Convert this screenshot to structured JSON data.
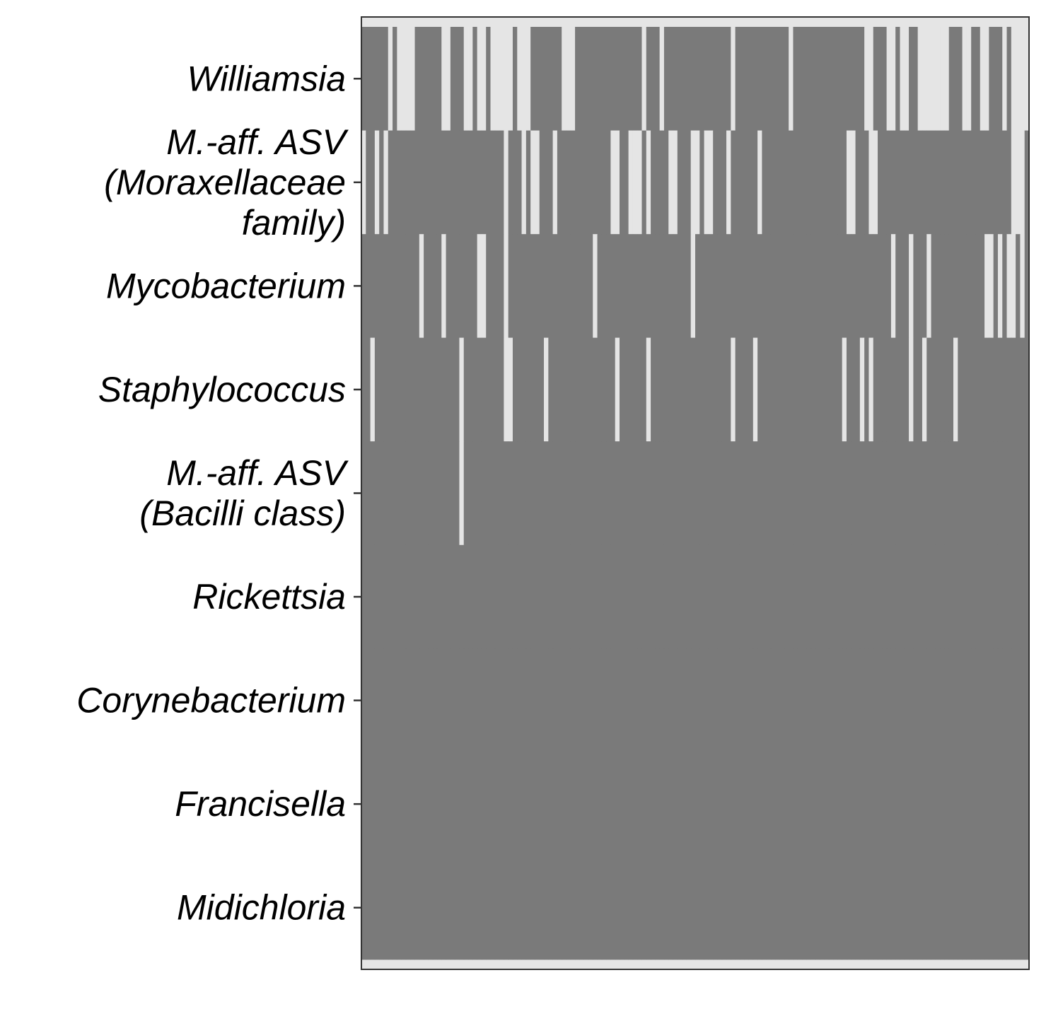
{
  "chart_data": {
    "type": "heatmap",
    "title": "",
    "xlabel": "",
    "ylabel": "",
    "n_columns": 150,
    "colors": {
      "present": "#7a7a7a",
      "absent": "#e5e5e5",
      "frame": "#333333",
      "background": "#ffffff"
    },
    "rows": [
      {
        "label": [
          "Williamsia"
        ],
        "absent_columns": [
          6,
          8,
          9,
          10,
          11,
          18,
          19,
          23,
          24,
          26,
          27,
          29,
          30,
          31,
          32,
          33,
          35,
          36,
          37,
          45,
          46,
          47,
          63,
          67,
          83,
          96,
          113,
          114,
          118,
          119,
          121,
          122,
          125,
          126,
          127,
          128,
          129,
          130,
          131,
          135,
          136,
          139,
          140,
          144,
          146,
          147,
          148,
          149
        ]
      },
      {
        "label": [
          "M.-aff. ASV",
          "(Moraxellaceae",
          "family)"
        ],
        "absent_columns": [
          0,
          3,
          5,
          32,
          36,
          38,
          39,
          43,
          56,
          57,
          60,
          61,
          62,
          64,
          69,
          70,
          74,
          75,
          77,
          78,
          82,
          89,
          109,
          110,
          114,
          115,
          146,
          147,
          148
        ]
      },
      {
        "label": [
          "Mycobacterium"
        ],
        "absent_columns": [
          13,
          18,
          26,
          27,
          32,
          52,
          74,
          119,
          123,
          127,
          140,
          141,
          143,
          145,
          146,
          148
        ]
      },
      {
        "label": [
          "Staphylococcus"
        ],
        "absent_columns": [
          2,
          22,
          32,
          33,
          41,
          57,
          64,
          83,
          88,
          108,
          112,
          114,
          123,
          126,
          133
        ]
      },
      {
        "label": [
          "M.-aff. ASV",
          "(Bacilli class)"
        ],
        "absent_columns": [
          22
        ]
      },
      {
        "label": [
          "Rickettsia"
        ],
        "absent_columns": []
      },
      {
        "label": [
          "Corynebacterium"
        ],
        "absent_columns": []
      },
      {
        "label": [
          "Francisella"
        ],
        "absent_columns": []
      },
      {
        "label": [
          "Midichloria"
        ],
        "absent_columns": []
      }
    ],
    "grid": false,
    "legend": "none"
  }
}
